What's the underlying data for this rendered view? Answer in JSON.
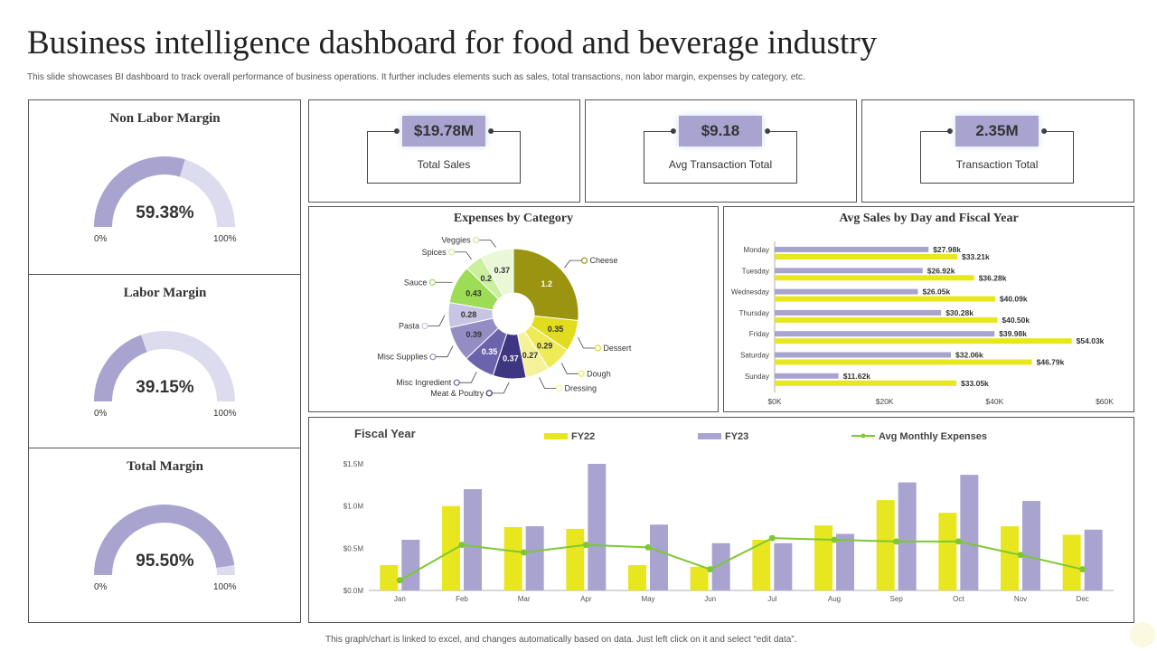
{
  "page": {
    "title": "Business intelligence dashboard for food and beverage industry",
    "subtitle": "This slide showcases BI dashboard to track overall performance of business operations. It further includes elements such as sales, total transactions, non labor margin, expenses by category, etc.",
    "footer": "This graph/chart is linked to excel, and changes automatically based on data. Just left click on it and select “edit data”."
  },
  "colors": {
    "purple": "#a9a3d0",
    "purple_dark": "#5a4f96",
    "yellow": "#e8e61f",
    "green": "#7dc832",
    "olive": "#9a9410",
    "track": "#dddcee"
  },
  "gauges": [
    {
      "title": "Non Labor Margin",
      "value": 59.38,
      "display": "59.38%",
      "min": "0%",
      "max": "100%"
    },
    {
      "title": "Labor Margin",
      "value": 39.15,
      "display": "39.15%",
      "min": "0%",
      "max": "100%"
    },
    {
      "title": "Total Margin",
      "value": 95.5,
      "display": "95.50%",
      "min": "0%",
      "max": "100%"
    }
  ],
  "kpis": [
    {
      "value": "$19.78M",
      "label": "Total Sales"
    },
    {
      "value": "$9.18",
      "label": "Avg  Transaction Total"
    },
    {
      "value": "2.35M",
      "label": "Transaction Total"
    }
  ],
  "chart_data": [
    {
      "type": "pie",
      "title": "Expenses by Category",
      "slices": [
        {
          "label": "Cheese",
          "value": 1.2,
          "display": "1.2",
          "color": "#9a9410"
        },
        {
          "label": "Dessert",
          "value": 0.35,
          "display": "0.35",
          "color": "#e1dc1e"
        },
        {
          "label": "Dough",
          "value": 0.29,
          "display": "0.29",
          "color": "#eeeb58"
        },
        {
          "label": "Dressing",
          "value": 0.27,
          "display": "0.27",
          "color": "#f5f39a"
        },
        {
          "label": "Meat & Poultry",
          "value": 0.37,
          "display": "0.37",
          "color": "#3f3682"
        },
        {
          "label": "Misc Ingredient",
          "value": 0.35,
          "display": "0.35",
          "color": "#6c63ad"
        },
        {
          "label": "Misc Supplies",
          "value": 0.39,
          "display": "0.39",
          "color": "#948dc4"
        },
        {
          "label": "Pasta",
          "value": 0.28,
          "display": "0.28",
          "color": "#c8c4e3"
        },
        {
          "label": "Sauce",
          "value": 0.43,
          "display": "0.43",
          "color": "#9ddc55"
        },
        {
          "label": "Spices",
          "value": 0.2,
          "display": "0.2",
          "color": "#c9ef9f"
        },
        {
          "label": "Veggies",
          "value": 0.37,
          "display": "0.37",
          "color": "#eaf8d7"
        }
      ]
    },
    {
      "type": "bar",
      "title": "Avg Sales by Day and Fiscal Year",
      "orientation": "horizontal",
      "categories": [
        "Monday",
        "Tuesday",
        "Wednesday",
        "Thursday",
        "Friday",
        "Saturday",
        "Sunday"
      ],
      "series": [
        {
          "name": "FY23",
          "values": [
            27.98,
            26.92,
            26.05,
            30.28,
            39.98,
            32.06,
            11.62
          ],
          "labels": [
            "$27.98k",
            "$26.92k",
            "$26.05k",
            "$30.28k",
            "$39.98k",
            "$32.06k",
            "$11.62k"
          ]
        },
        {
          "name": "FY22",
          "values": [
            33.21,
            36.28,
            40.09,
            40.5,
            54.03,
            46.79,
            33.05
          ],
          "labels": [
            "$33.21k",
            "$36.28k",
            "$40.09k",
            "$40.50k",
            "$54.03k",
            "$46.79k",
            "$33.05k"
          ]
        }
      ],
      "xlim": [
        0,
        60
      ],
      "xticks": [
        "$0K",
        "$20K",
        "$40K",
        "$60K"
      ]
    },
    {
      "type": "bar",
      "title": "Fiscal Year",
      "categories": [
        "Jan",
        "Feb",
        "Mar",
        "Apr",
        "May",
        "Jun",
        "Jul",
        "Aug",
        "Sep",
        "Oct",
        "Nov",
        "Dec"
      ],
      "series": [
        {
          "name": "FY22",
          "type": "bar",
          "values": [
            0.3,
            1.0,
            0.75,
            0.73,
            0.3,
            0.28,
            0.6,
            0.77,
            1.07,
            0.92,
            0.76,
            0.66
          ]
        },
        {
          "name": "FY23",
          "type": "bar",
          "values": [
            0.6,
            1.2,
            0.76,
            1.5,
            0.78,
            0.56,
            0.56,
            0.67,
            1.28,
            1.37,
            1.06,
            0.72
          ]
        },
        {
          "name": "Avg Monthly Expenses",
          "type": "line",
          "values": [
            0.12,
            0.54,
            0.45,
            0.54,
            0.51,
            0.25,
            0.62,
            0.6,
            0.58,
            0.58,
            0.42,
            0.25
          ]
        }
      ],
      "ylim": [
        0,
        1.5
      ],
      "yticks": [
        "$0.0M",
        "$0.5M",
        "$1.0M",
        "$1.5M"
      ]
    }
  ]
}
